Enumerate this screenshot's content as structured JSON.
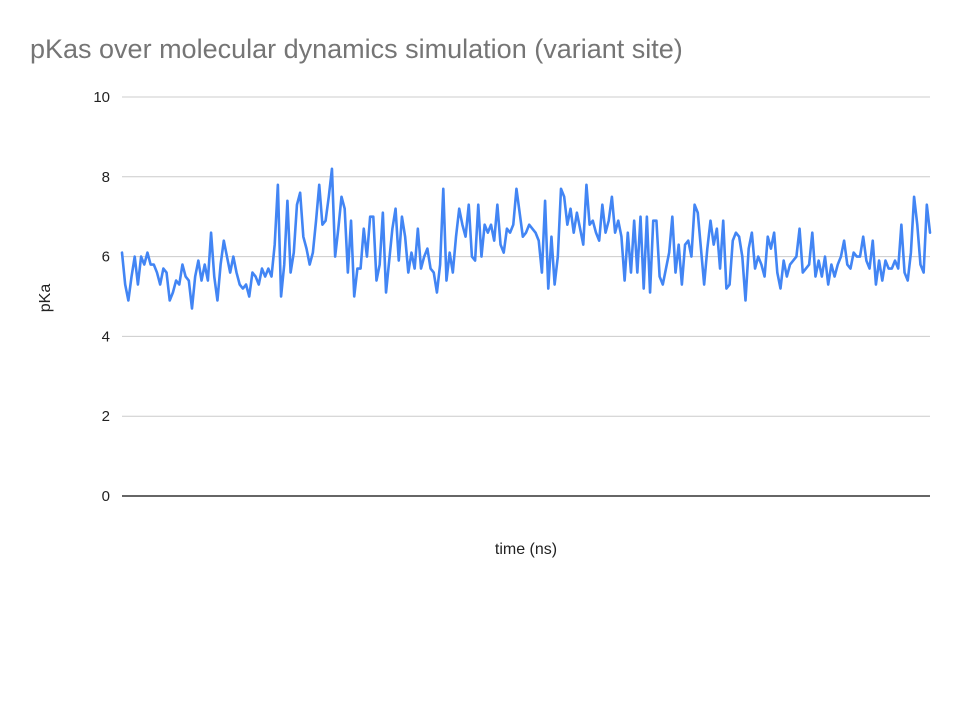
{
  "chart_data": {
    "type": "line",
    "title": "pKas over molecular dynamics simulation (variant site)",
    "xlabel": "time (ns)",
    "ylabel": "pKa",
    "ylim": [
      0,
      10
    ],
    "yticks": [
      "0",
      "2",
      "4",
      "6",
      "8",
      "10"
    ],
    "grid": true,
    "legend": "none",
    "series": [
      {
        "color": "#4285f4",
        "values": [
          6.1,
          5.3,
          4.9,
          5.5,
          6.0,
          5.3,
          6.0,
          5.8,
          6.1,
          5.8,
          5.8,
          5.6,
          5.3,
          5.7,
          5.6,
          4.9,
          5.1,
          5.4,
          5.3,
          5.8,
          5.5,
          5.4,
          4.7,
          5.5,
          5.9,
          5.4,
          5.8,
          5.4,
          6.6,
          5.5,
          4.9,
          5.8,
          6.4,
          6.0,
          5.6,
          6.0,
          5.6,
          5.3,
          5.2,
          5.3,
          5.0,
          5.6,
          5.5,
          5.3,
          5.7,
          5.5,
          5.7,
          5.5,
          6.3,
          7.8,
          5.0,
          5.8,
          7.4,
          5.6,
          6.1,
          7.3,
          7.6,
          6.5,
          6.2,
          5.8,
          6.1,
          6.9,
          7.8,
          6.8,
          6.9,
          7.5,
          8.2,
          6.0,
          6.7,
          7.5,
          7.2,
          5.6,
          6.9,
          5.0,
          5.7,
          5.7,
          6.7,
          6.0,
          7.0,
          7.0,
          5.4,
          5.8,
          7.1,
          5.1,
          5.9,
          6.7,
          7.2,
          5.9,
          7.0,
          6.5,
          5.6,
          6.1,
          5.7,
          6.7,
          5.7,
          6.0,
          6.2,
          5.7,
          5.6,
          5.1,
          5.8,
          7.7,
          5.4,
          6.1,
          5.6,
          6.5,
          7.2,
          6.8,
          6.5,
          7.3,
          6.0,
          5.9,
          7.3,
          6.0,
          6.8,
          6.6,
          6.8,
          6.4,
          7.3,
          6.3,
          6.1,
          6.7,
          6.6,
          6.8,
          7.7,
          7.1,
          6.5,
          6.6,
          6.8,
          6.7,
          6.6,
          6.4,
          5.6,
          7.4,
          5.2,
          6.5,
          5.3,
          6.0,
          7.7,
          7.5,
          6.8,
          7.2,
          6.6,
          7.1,
          6.7,
          6.3,
          7.8,
          6.8,
          6.9,
          6.6,
          6.4,
          7.3,
          6.6,
          6.9,
          7.5,
          6.6,
          6.9,
          6.5,
          5.4,
          6.6,
          5.6,
          6.9,
          5.6,
          7.0,
          5.2,
          7.0,
          5.1,
          6.9,
          6.9,
          5.5,
          5.3,
          5.7,
          6.1,
          7.0,
          5.6,
          6.3,
          5.3,
          6.3,
          6.4,
          6.0,
          7.3,
          7.1,
          6.2,
          5.3,
          6.2,
          6.9,
          6.3,
          6.7,
          5.7,
          6.9,
          5.2,
          5.3,
          6.4,
          6.6,
          6.5,
          6.0,
          4.9,
          6.2,
          6.6,
          5.7,
          6.0,
          5.8,
          5.5,
          6.5,
          6.2,
          6.6,
          5.6,
          5.2,
          5.9,
          5.5,
          5.8,
          5.9,
          6.0,
          6.7,
          5.6,
          5.7,
          5.8,
          6.6,
          5.5,
          5.9,
          5.5,
          6.0,
          5.3,
          5.8,
          5.5,
          5.8,
          6.0,
          6.4,
          5.8,
          5.7,
          6.1,
          6.0,
          6.0,
          6.5,
          5.9,
          5.7,
          6.4,
          5.3,
          5.9,
          5.4,
          5.9,
          5.7,
          5.7,
          5.9,
          5.7,
          6.8,
          5.6,
          5.4,
          6.1,
          7.5,
          6.8,
          5.8,
          5.6,
          7.3,
          6.6
        ]
      }
    ]
  }
}
